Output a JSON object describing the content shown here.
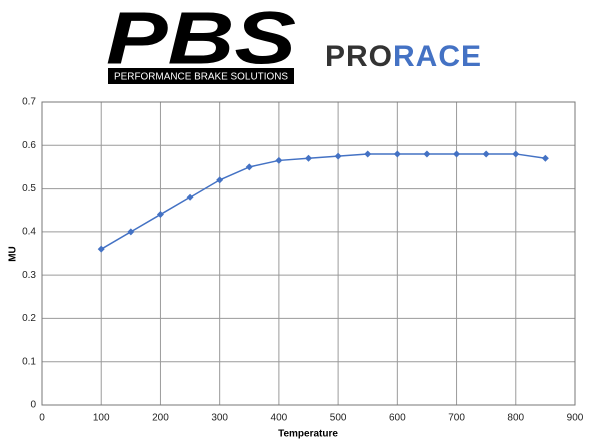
{
  "chart_data": {
    "type": "line",
    "logo_title": "PBS",
    "logo_subtitle": "PERFORMANCE BRAKE SOLUTIONS",
    "brand_prefix": "PRO",
    "brand_suffix": "RACE",
    "brand_color": "#4472c4",
    "x_label": "Temperature",
    "y_label": "MU",
    "x": [
      100,
      150,
      200,
      250,
      300,
      350,
      400,
      450,
      500,
      550,
      600,
      650,
      700,
      750,
      800,
      850
    ],
    "series": [
      {
        "name": "MU",
        "color": "#4472c4",
        "values": [
          0.36,
          0.4,
          0.44,
          0.48,
          0.52,
          0.55,
          0.565,
          0.57,
          0.575,
          0.58,
          0.58,
          0.58,
          0.58,
          0.58,
          0.58,
          0.57
        ]
      }
    ],
    "xlim": [
      0,
      900
    ],
    "xticks": [
      0,
      100,
      200,
      300,
      400,
      500,
      600,
      700,
      800,
      900
    ],
    "ylim": [
      0,
      0.7
    ],
    "yticks": [
      0,
      0.1,
      0.2,
      0.3,
      0.4,
      0.5,
      0.6,
      0.7
    ],
    "grid": true
  }
}
